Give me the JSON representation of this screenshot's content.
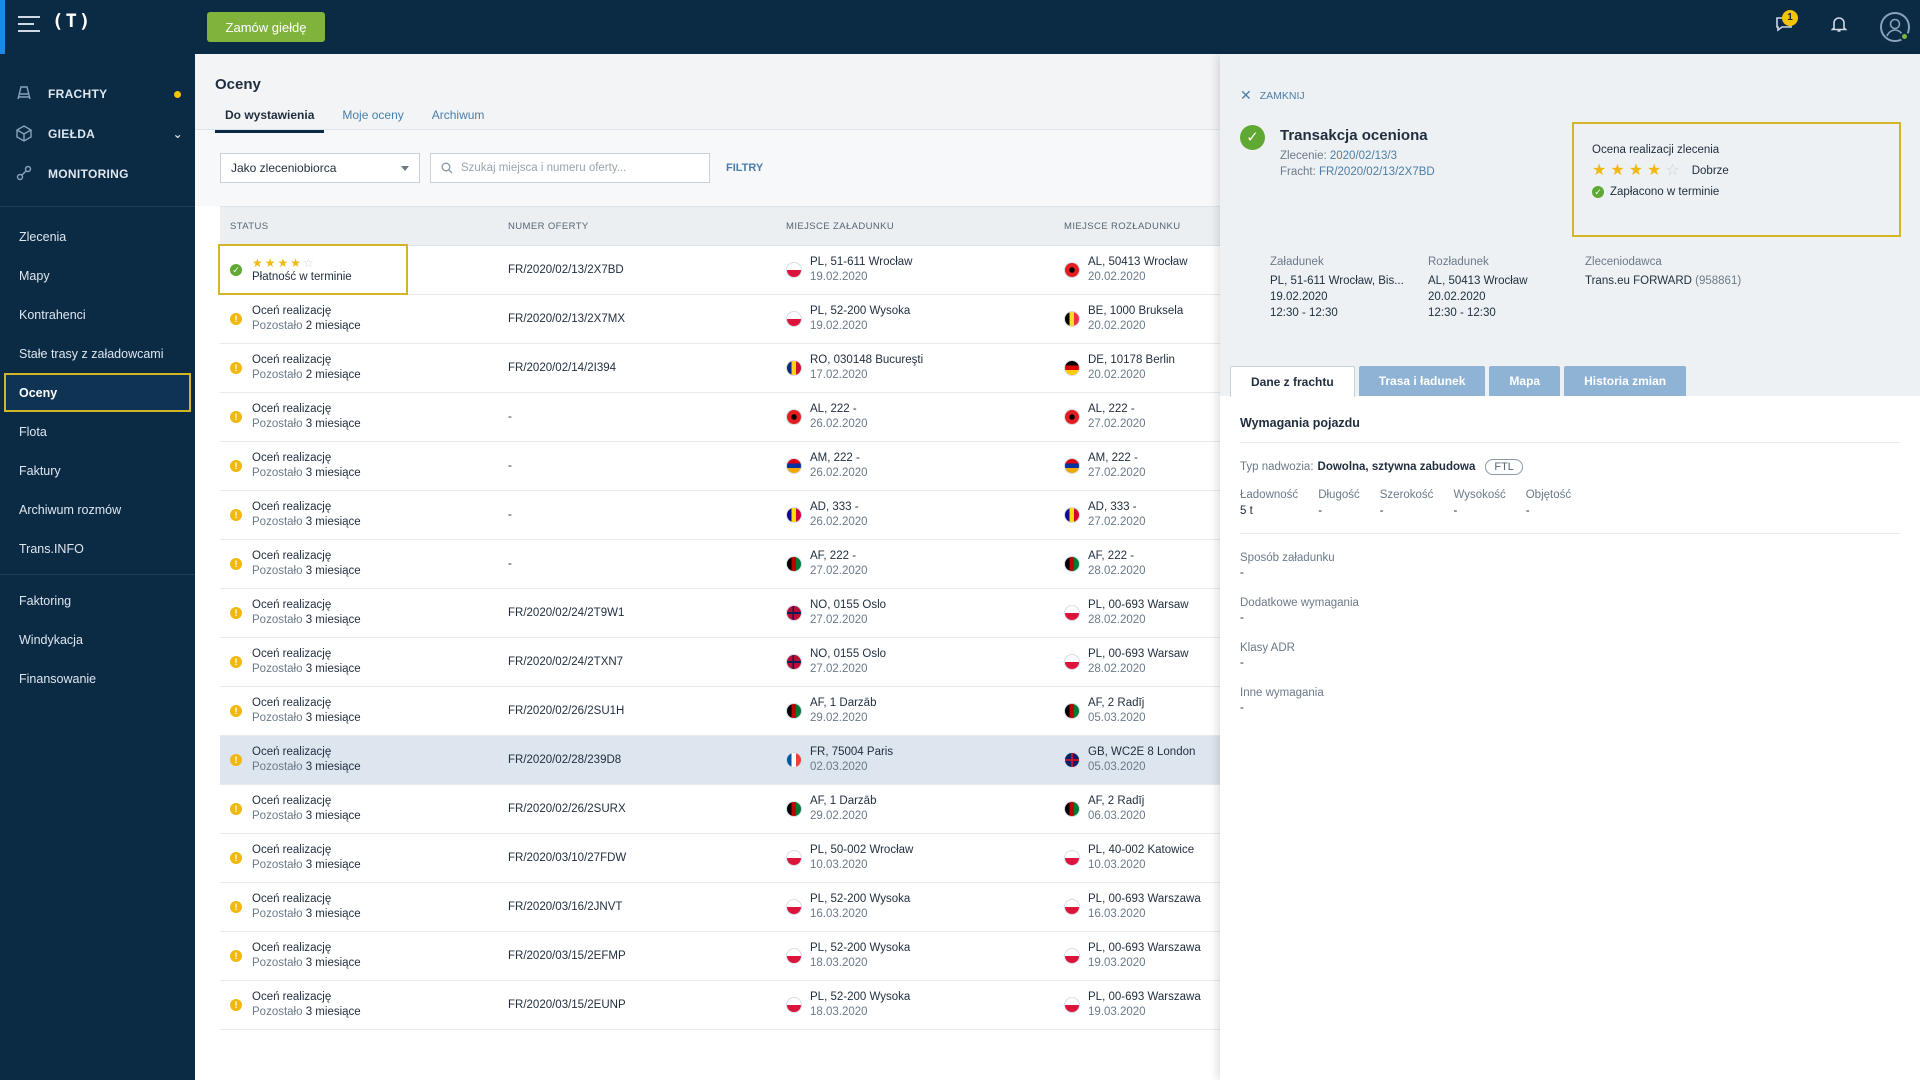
{
  "topbar": {
    "logo": "(T)",
    "order_button": "Zamów giełdę",
    "messages_badge": "1"
  },
  "sidebar": {
    "modules": [
      {
        "label": "FRACHTY",
        "icon": "freight-icon"
      },
      {
        "label": "GIEŁDA",
        "icon": "exchange-icon"
      },
      {
        "label": "MONITORING",
        "icon": "monitoring-icon"
      }
    ],
    "nav": [
      {
        "label": "Zlecenia"
      },
      {
        "label": "Mapy"
      },
      {
        "label": "Kontrahenci"
      },
      {
        "label": "Stałe trasy z załadowcami"
      },
      {
        "label": "Oceny"
      },
      {
        "label": "Flota"
      },
      {
        "label": "Faktury"
      },
      {
        "label": "Archiwum rozmów"
      },
      {
        "label": "Trans.INFO"
      },
      {
        "label": "Faktoring"
      },
      {
        "label": "Windykacja"
      },
      {
        "label": "Finansowanie"
      }
    ]
  },
  "main": {
    "title": "Oceny",
    "tabs": [
      "Do wystawienia",
      "Moje oceny",
      "Archiwum"
    ],
    "role_select": "Jako zleceniobiorca",
    "search_placeholder": "Szukaj miejsca i numeru oferty...",
    "filters_link": "FILTRY",
    "columns": [
      "STATUS",
      "NUMER OFERTY",
      "MIEJSCE ZAŁADUNKU",
      "MIEJSCE ROZŁADUNKU"
    ],
    "rated_row": {
      "status": "Płatność w terminie",
      "offer": "FR/2020/02/13/2X7BD",
      "load_place": "PL, 51-611 Wrocław",
      "load_date": "19.02.2020",
      "unload_place": "AL, 50413 Wrocław",
      "unload_date": "20.02.2020",
      "load_flag": "PL",
      "unload_flag": "AL"
    },
    "rows": [
      {
        "status": "Oceń realizację",
        "remain_prefix": "Pozostało",
        "remain": "2 miesiące",
        "offer": "FR/2020/02/13/2X7MX",
        "load_place": "PL, 52-200 Wysoka",
        "load_date": "19.02.2020",
        "unload_place": "BE, 1000 Bruksela",
        "unload_date": "20.02.2020",
        "load_flag": "PL",
        "unload_flag": "BE"
      },
      {
        "status": "Oceń realizację",
        "remain_prefix": "Pozostało",
        "remain": "2 miesiące",
        "offer": "FR/2020/02/14/2I394",
        "load_place": "RO, 030148 Bucureşti",
        "load_date": "17.02.2020",
        "unload_place": "DE, 10178 Berlin",
        "unload_date": "20.02.2020",
        "load_flag": "RO",
        "unload_flag": "DE"
      },
      {
        "status": "Oceń realizację",
        "remain_prefix": "Pozostało",
        "remain": "3 miesiące",
        "offer": "-",
        "load_place": "AL, 222 -",
        "load_date": "26.02.2020",
        "unload_place": "AL, 222 -",
        "unload_date": "27.02.2020",
        "load_flag": "AL",
        "unload_flag": "AL"
      },
      {
        "status": "Oceń realizację",
        "remain_prefix": "Pozostało",
        "remain": "3 miesiące",
        "offer": "-",
        "load_place": "AM, 222 -",
        "load_date": "26.02.2020",
        "unload_place": "AM, 222 -",
        "unload_date": "27.02.2020",
        "load_flag": "AM",
        "unload_flag": "AM"
      },
      {
        "status": "Oceń realizację",
        "remain_prefix": "Pozostało",
        "remain": "3 miesiące",
        "offer": "-",
        "load_place": "AD, 333 -",
        "load_date": "26.02.2020",
        "unload_place": "AD, 333 -",
        "unload_date": "27.02.2020",
        "load_flag": "AD",
        "unload_flag": "AD"
      },
      {
        "status": "Oceń realizację",
        "remain_prefix": "Pozostało",
        "remain": "3 miesiące",
        "offer": "-",
        "load_place": "AF, 222 -",
        "load_date": "27.02.2020",
        "unload_place": "AF, 222 -",
        "unload_date": "28.02.2020",
        "load_flag": "AF",
        "unload_flag": "AF"
      },
      {
        "status": "Oceń realizację",
        "remain_prefix": "Pozostało",
        "remain": "3 miesiące",
        "offer": "FR/2020/02/24/2T9W1",
        "load_place": "NO, 0155 Oslo",
        "load_date": "27.02.2020",
        "unload_place": "PL, 00-693 Warsaw",
        "unload_date": "28.02.2020",
        "load_flag": "NO",
        "unload_flag": "PL"
      },
      {
        "status": "Oceń realizację",
        "remain_prefix": "Pozostało",
        "remain": "3 miesiące",
        "offer": "FR/2020/02/24/2TXN7",
        "load_place": "NO, 0155 Oslo",
        "load_date": "27.02.2020",
        "unload_place": "PL, 00-693 Warsaw",
        "unload_date": "28.02.2020",
        "load_flag": "NO",
        "unload_flag": "PL"
      },
      {
        "status": "Oceń realizację",
        "remain_prefix": "Pozostało",
        "remain": "3 miesiące",
        "offer": "FR/2020/02/26/2SU1H",
        "load_place": "AF, 1 Darzāb",
        "load_date": "29.02.2020",
        "unload_place": "AF, 2 Radīj",
        "unload_date": "05.03.2020",
        "load_flag": "AF",
        "unload_flag": "AF"
      },
      {
        "status": "Oceń realizację",
        "remain_prefix": "Pozostało",
        "remain": "3 miesiące",
        "offer": "FR/2020/02/28/239D8",
        "load_place": "FR, 75004 Paris",
        "load_date": "02.03.2020",
        "unload_place": "GB, WC2E 8 London",
        "unload_date": "05.03.2020",
        "load_flag": "FR",
        "unload_flag": "GB",
        "highlight": true
      },
      {
        "status": "Oceń realizację",
        "remain_prefix": "Pozostało",
        "remain": "3 miesiące",
        "offer": "FR/2020/02/26/2SURX",
        "load_place": "AF, 1 Darzāb",
        "load_date": "29.02.2020",
        "unload_place": "AF, 2 Radīj",
        "unload_date": "06.03.2020",
        "load_flag": "AF",
        "unload_flag": "AF"
      },
      {
        "status": "Oceń realizację",
        "remain_prefix": "Pozostało",
        "remain": "3 miesiące",
        "offer": "FR/2020/03/10/27FDW",
        "load_place": "PL, 50-002 Wrocław",
        "load_date": "10.03.2020",
        "unload_place": "PL, 40-002 Katowice",
        "unload_date": "10.03.2020",
        "load_flag": "PL",
        "unload_flag": "PL"
      },
      {
        "status": "Oceń realizację",
        "remain_prefix": "Pozostało",
        "remain": "3 miesiące",
        "offer": "FR/2020/03/16/2JNVT",
        "load_place": "PL, 52-200 Wysoka",
        "load_date": "16.03.2020",
        "unload_place": "PL, 00-693 Warszawa",
        "unload_date": "16.03.2020",
        "load_flag": "PL",
        "unload_flag": "PL"
      },
      {
        "status": "Oceń realizację",
        "remain_prefix": "Pozostało",
        "remain": "3 miesiące",
        "offer": "FR/2020/03/15/2EFMP",
        "load_place": "PL, 52-200 Wysoka",
        "load_date": "18.03.2020",
        "unload_place": "PL, 00-693 Warszawa",
        "unload_date": "19.03.2020",
        "load_flag": "PL",
        "unload_flag": "PL"
      },
      {
        "status": "Oceń realizację",
        "remain_prefix": "Pozostało",
        "remain": "3 miesiące",
        "offer": "FR/2020/03/15/2EUNP",
        "load_place": "PL, 52-200 Wysoka",
        "load_date": "18.03.2020",
        "unload_place": "PL, 00-693 Warszawa",
        "unload_date": "19.03.2020",
        "load_flag": "PL",
        "unload_flag": "PL"
      }
    ]
  },
  "panel": {
    "close": "ZAMKNIJ",
    "title": "Transakcja oceniona",
    "order_label": "Zlecenie:",
    "order_value": "2020/02/13/3",
    "freight_label": "Fracht:",
    "freight_value": "FR/2020/02/13/2X7BD",
    "rating": {
      "title": "Ocena realizacji zlecenia",
      "value": "Dobrze",
      "stars_filled": 4,
      "stars_total": 5,
      "paid": "Zapłacono w terminie"
    },
    "loading": {
      "label": "Załadunek",
      "place": "PL, 51-611 Wrocław, Bis...",
      "date": "19.02.2020",
      "time": "12:30 - 12:30"
    },
    "unloading": {
      "label": "Rozładunek",
      "place": "AL, 50413 Wrocław",
      "date": "20.02.2020",
      "time": "12:30 - 12:30"
    },
    "principal": {
      "label": "Zleceniodawca",
      "name": "Trans.eu FORWARD",
      "id": "(958861)"
    },
    "tabs": [
      "Dane z frachtu",
      "Trasa i ładunek",
      "Mapa",
      "Historia zmian"
    ],
    "section_title": "Wymagania pojazdu",
    "body_type_label": "Typ nadwozia:",
    "body_type_value": "Dowolna, sztywna zabudowa",
    "body_type_tag": "FTL",
    "dims": [
      {
        "label": "Ładowność",
        "value": "5 t"
      },
      {
        "label": "Długość",
        "value": "-"
      },
      {
        "label": "Szerokość",
        "value": "-"
      },
      {
        "label": "Wysokość",
        "value": "-"
      },
      {
        "label": "Objętość",
        "value": "-"
      }
    ],
    "fields": [
      {
        "label": "Sposób załadunku",
        "value": "-"
      },
      {
        "label": "Dodatkowe wymagania",
        "value": "-"
      },
      {
        "label": "Klasy ADR",
        "value": "-"
      },
      {
        "label": "Inne wymagania",
        "value": "-"
      }
    ]
  },
  "colors": {
    "navy": "#0b2a44",
    "green": "#7fb33c",
    "ok_green": "#5fa832",
    "warning": "#f1b80f",
    "highlight_border": "#d4b526",
    "link": "#4a7ea8"
  }
}
